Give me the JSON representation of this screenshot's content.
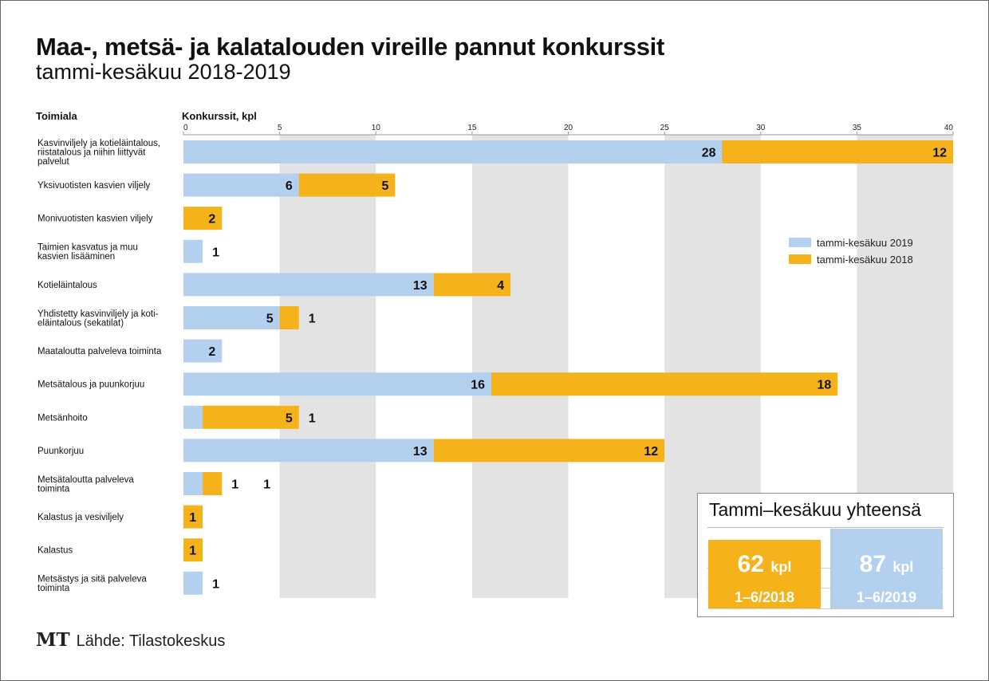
{
  "header": {
    "title": "Maa-, metsä- ja kalatalouden vireille pannut konkurssit",
    "subtitle": "tammi-kesäkuu 2018-2019"
  },
  "columns": {
    "category_label": "Toimiala",
    "value_label": "Konkurssit, kpl"
  },
  "chart_data": {
    "type": "bar",
    "orientation": "horizontal",
    "stacked": true,
    "xlim": [
      0,
      40
    ],
    "ticks": [
      0,
      5,
      10,
      15,
      20,
      25,
      30,
      35,
      40
    ],
    "legend_position": "right",
    "categories": [
      [
        "Kasvinviljely ja kotieläintalous,",
        "riistatalous ja niihin liittyvät",
        "palvelut"
      ],
      [
        "Yksivuotisten kasvien viljely"
      ],
      [
        "Monivuotisten kasvien viljely"
      ],
      [
        "Taimien kasvatus ja muu",
        "kasvien lisääminen"
      ],
      [
        "Kotieläintalous"
      ],
      [
        "Yhdistetty kasvinviljely ja koti-",
        "eläintalous (sekatilat)"
      ],
      [
        "Maataloutta palveleva toiminta"
      ],
      [
        "Metsätalous ja puunkorjuu"
      ],
      [
        "Metsänhoito"
      ],
      [
        "Puunkorjuu"
      ],
      [
        "Metsätaloutta palveleva",
        "toiminta"
      ],
      [
        "Kalastus ja vesiviljely"
      ],
      [
        "Kalastus"
      ],
      [
        "Metsästys ja sitä palveleva",
        "toiminta"
      ]
    ],
    "series": [
      {
        "name": "tammi-kesäkuu 2019",
        "color": "#b3d1ee",
        "values": [
          28,
          6,
          0,
          1,
          13,
          5,
          2,
          16,
          1,
          13,
          1,
          0,
          0,
          1
        ]
      },
      {
        "name": "tammi-kesäkuu 2018",
        "color": "#f5b21a",
        "values": [
          12,
          5,
          2,
          0,
          4,
          1,
          0,
          18,
          5,
          12,
          1,
          1,
          1,
          0
        ]
      }
    ]
  },
  "totals": {
    "title": "Tammi–kesäkuu yhteensä",
    "unit": "kpl",
    "y2018": {
      "value": "62",
      "period": "1–6/2018"
    },
    "y2019": {
      "value": "87",
      "period": "1–6/2019"
    }
  },
  "footer": {
    "logo": "MT",
    "source": "Lähde: Tilastokeskus"
  }
}
